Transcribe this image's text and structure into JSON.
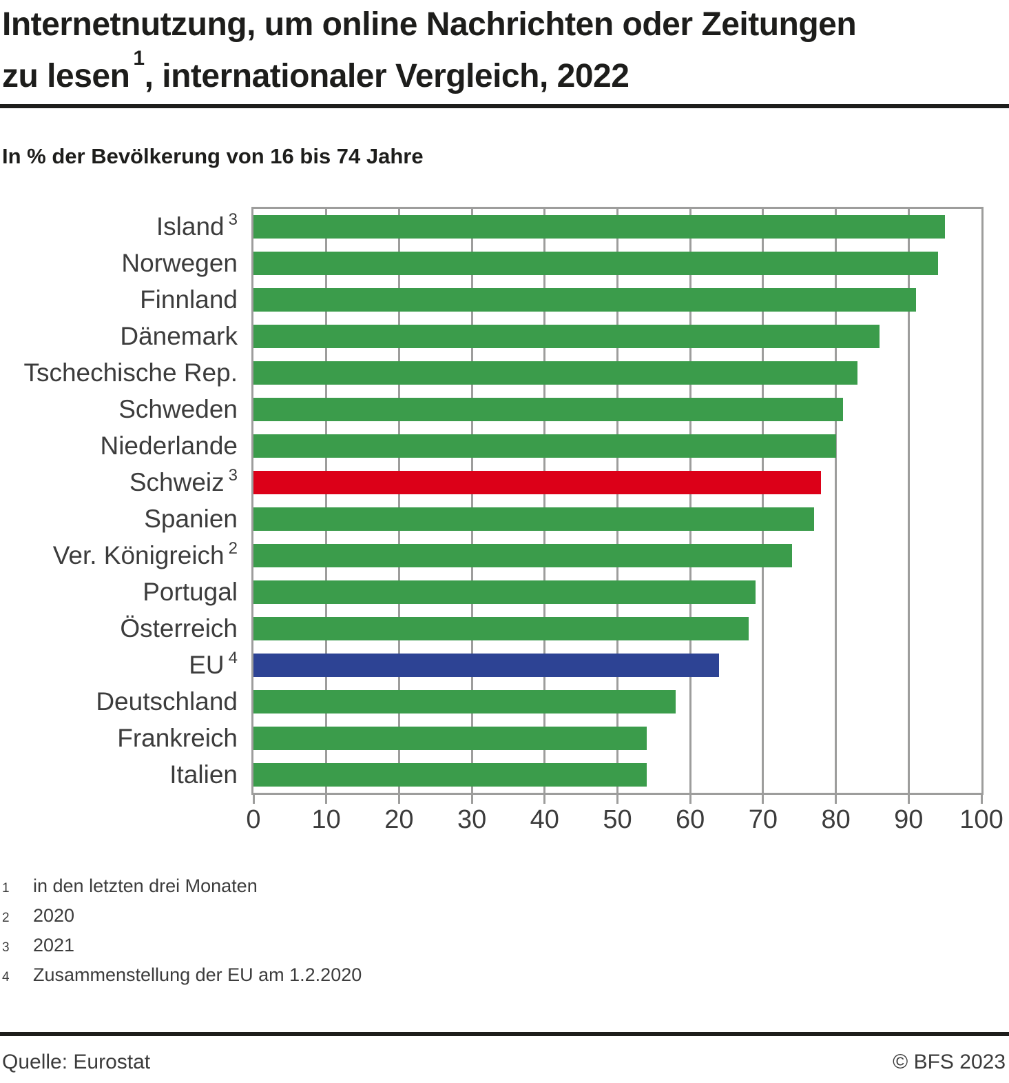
{
  "header": {
    "title_line1": "Internetnutzung, um online Nachrichten oder Zeitungen",
    "title_line2_before_sup": "zu lesen",
    "title_sup": "1",
    "title_line2_after_sup": ", internationaler Vergleich, 2022",
    "subtitle": "In % der Bevölkerung von 16 bis 74 Jahre"
  },
  "chart_data": {
    "type": "bar",
    "orientation": "horizontal",
    "title": "Internetnutzung, um online Nachrichten oder Zeitungen zu lesen, internationaler Vergleich, 2022",
    "unit_label": "In % der Bevölkerung von 16 bis 74 Jahre",
    "xlim": [
      0,
      100
    ],
    "x_ticks": [
      0,
      10,
      20,
      30,
      40,
      50,
      60,
      70,
      80,
      90,
      100
    ],
    "grid": true,
    "legend": false,
    "categories": [
      "Island",
      "Norwegen",
      "Finnland",
      "Dänemark",
      "Tschechische Rep.",
      "Schweden",
      "Niederlande",
      "Schweiz",
      "Spanien",
      "Ver. Königreich",
      "Portugal",
      "Österreich",
      "EU",
      "Deutschland",
      "Frankreich",
      "Italien"
    ],
    "category_footnote_sups": [
      "3",
      "",
      "",
      "",
      "",
      "",
      "",
      "3",
      "",
      "2",
      "",
      "",
      "4",
      "",
      "",
      ""
    ],
    "values": [
      95,
      94,
      91,
      86,
      83,
      81,
      80,
      78,
      77,
      74,
      69,
      68,
      64,
      58,
      54,
      54
    ],
    "bar_color_keys": [
      "green",
      "green",
      "green",
      "green",
      "green",
      "green",
      "green",
      "red",
      "green",
      "green",
      "green",
      "green",
      "blue",
      "green",
      "green",
      "green"
    ]
  },
  "footnotes": [
    {
      "sup": "1",
      "text": "in den letzten drei Monaten"
    },
    {
      "sup": "2",
      "text": "2020"
    },
    {
      "sup": "3",
      "text": "2021"
    },
    {
      "sup": "4",
      "text": "Zusammenstellung der EU am 1.2.2020"
    }
  ],
  "footer": {
    "source": "Quelle: Eurostat",
    "copyright": "© BFS 2023"
  },
  "colors": {
    "green": "#3B9C4B",
    "red": "#DC0018",
    "blue": "#2D4394",
    "grid": "#9D9D9C",
    "frame": "#9D9D9C",
    "title_text": "#1D1D1B",
    "body_text": "#3C3C3C",
    "rule": "#1D1D1B"
  }
}
